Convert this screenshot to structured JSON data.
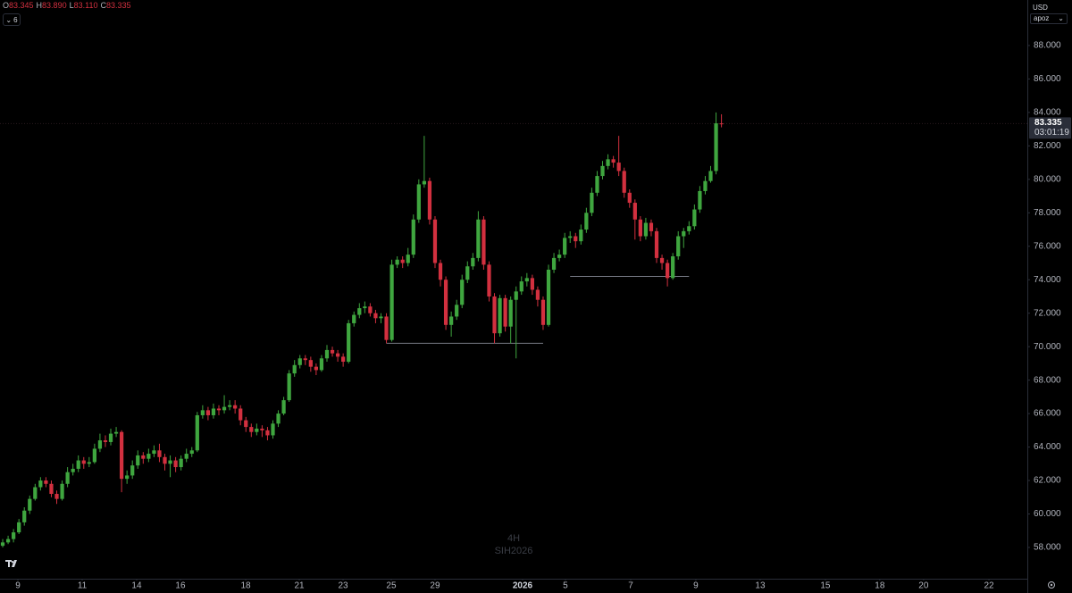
{
  "chart_data": {
    "type": "candlestick",
    "header": [
      {
        "key": "O",
        "value": 83.345,
        "label": "83.345"
      },
      {
        "key": "H",
        "value": 83.89,
        "label": "83.890"
      },
      {
        "key": "L",
        "value": 83.11,
        "label": "83.110"
      },
      {
        "key": "C",
        "value": 83.335,
        "label": "83.335"
      }
    ],
    "indicator_count": "6",
    "currency": "USD",
    "scale_menu": "apoz",
    "interval": "4H",
    "symbol": "SIH2026",
    "up_color": "#3fa63f",
    "down_color": "#d2303f",
    "grid": false,
    "open": [
      58.1,
      58.3,
      58.5,
      58.9,
      59.5,
      60.2,
      60.9,
      61.6,
      62.0,
      61.8,
      61.2,
      60.9,
      61.8,
      62.5,
      62.7,
      63.2,
      63.0,
      63.1,
      63.9,
      64.4,
      64.3,
      64.8,
      64.9,
      62.1,
      62.3,
      62.9,
      63.5,
      63.3,
      63.6,
      63.8,
      63.4,
      63.0,
      63.2,
      62.8,
      63.3,
      63.6,
      63.8,
      65.9,
      66.2,
      65.9,
      66.3,
      66.2,
      66.4,
      66.5,
      66.3,
      65.6,
      65.2,
      64.9,
      65.1,
      65.0,
      64.7,
      65.4,
      66.0,
      66.8,
      68.4,
      68.9,
      69.3,
      69.2,
      68.8,
      68.6,
      69.3,
      69.8,
      69.6,
      69.4,
      69.1,
      71.4,
      71.9,
      72.3,
      72.4,
      72.0,
      71.7,
      71.8,
      70.4,
      74.9,
      75.2,
      75.0,
      75.5,
      77.6,
      79.7,
      79.9,
      77.6,
      75.0,
      74.0,
      71.3,
      71.8,
      72.5,
      74.0,
      74.8,
      75.3,
      77.6,
      74.9,
      73.0,
      70.8,
      72.9,
      71.2,
      72.8,
      73.3,
      73.9,
      74.1,
      73.4,
      72.8,
      71.3,
      74.6,
      75.3,
      75.5,
      76.5,
      76.6,
      76.3,
      77.0,
      78.0,
      79.2,
      80.2,
      80.8,
      81.2,
      81.0,
      80.5,
      79.2,
      78.6,
      77.6,
      76.6,
      77.4,
      76.9,
      75.3,
      75.0,
      74.1,
      75.4,
      76.6,
      76.9,
      77.2,
      78.2,
      79.3,
      79.9,
      80.5,
      83.345
    ],
    "high": [
      58.5,
      58.7,
      59.1,
      59.7,
      60.4,
      61.1,
      61.8,
      62.2,
      62.2,
      62.0,
      61.4,
      62.0,
      62.8,
      63.0,
      63.5,
      63.4,
      63.4,
      64.2,
      64.8,
      64.7,
      65.1,
      65.2,
      65.0,
      62.6,
      63.2,
      63.8,
      63.7,
      63.9,
      64.1,
      64.2,
      63.6,
      63.5,
      63.4,
      63.5,
      63.9,
      64.0,
      66.1,
      66.5,
      66.4,
      66.6,
      66.5,
      67.1,
      66.8,
      66.8,
      66.5,
      65.8,
      65.4,
      65.4,
      65.3,
      65.2,
      65.6,
      66.2,
      67.0,
      68.6,
      69.2,
      69.5,
      69.5,
      69.4,
      69.0,
      69.5,
      70.1,
      70.0,
      69.8,
      69.6,
      71.6,
      72.1,
      72.6,
      72.7,
      72.6,
      72.2,
      72.0,
      72.0,
      75.2,
      75.4,
      75.4,
      75.9,
      77.9,
      80.0,
      82.6,
      80.1,
      77.8,
      75.2,
      74.2,
      72.1,
      72.8,
      74.3,
      75.1,
      75.6,
      78.1,
      77.8,
      75.1,
      73.2,
      73.1,
      73.1,
      73.0,
      73.6,
      74.2,
      74.4,
      74.3,
      73.6,
      73.0,
      74.9,
      75.6,
      75.8,
      76.8,
      76.9,
      76.8,
      77.3,
      78.3,
      79.5,
      80.5,
      81.1,
      81.5,
      81.4,
      82.6,
      80.7,
      79.4,
      78.8,
      77.8,
      77.7,
      77.6,
      77.1,
      75.5,
      75.2,
      75.6,
      76.9,
      77.1,
      77.5,
      78.5,
      79.6,
      80.2,
      80.8,
      84.0,
      83.89
    ],
    "low": [
      58.0,
      58.2,
      58.3,
      58.8,
      59.3,
      60.0,
      60.8,
      61.4,
      61.6,
      61.0,
      60.6,
      60.8,
      61.6,
      62.3,
      62.5,
      62.7,
      62.8,
      63.0,
      63.7,
      64.0,
      64.1,
      64.6,
      61.3,
      61.8,
      62.1,
      62.7,
      63.0,
      63.1,
      63.4,
      63.1,
      62.6,
      62.2,
      62.5,
      62.6,
      63.1,
      63.4,
      63.7,
      65.7,
      65.6,
      65.7,
      65.9,
      66.0,
      66.2,
      66.0,
      65.3,
      64.9,
      64.6,
      64.7,
      64.6,
      64.4,
      64.5,
      65.2,
      65.9,
      66.7,
      68.2,
      68.7,
      68.9,
      68.5,
      68.3,
      68.5,
      69.1,
      69.4,
      69.1,
      68.8,
      69.0,
      71.2,
      71.7,
      72.0,
      71.8,
      71.4,
      71.4,
      70.2,
      70.3,
      74.7,
      74.7,
      74.8,
      75.3,
      77.4,
      79.5,
      77.3,
      74.7,
      73.6,
      71.0,
      70.6,
      71.6,
      72.3,
      73.8,
      74.6,
      75.1,
      74.6,
      72.7,
      70.2,
      70.6,
      70.9,
      70.2,
      69.3,
      73.1,
      73.6,
      73.1,
      72.4,
      71.0,
      71.2,
      74.4,
      75.1,
      75.3,
      76.2,
      75.9,
      76.1,
      76.8,
      77.8,
      79.0,
      80.0,
      80.6,
      80.7,
      80.2,
      78.9,
      78.3,
      76.4,
      76.3,
      76.4,
      76.6,
      75.0,
      74.6,
      73.6,
      74.0,
      75.2,
      75.9,
      76.7,
      77.0,
      78.0,
      79.1,
      79.8,
      80.3,
      83.11
    ],
    "close": [
      58.3,
      58.5,
      58.9,
      59.5,
      60.2,
      60.9,
      61.6,
      62.0,
      61.8,
      61.2,
      60.9,
      61.8,
      62.5,
      62.7,
      63.2,
      63.0,
      63.1,
      63.9,
      64.4,
      64.3,
      64.8,
      64.9,
      62.1,
      62.3,
      62.9,
      63.5,
      63.3,
      63.6,
      63.8,
      63.4,
      63.0,
      63.2,
      62.8,
      63.3,
      63.6,
      63.8,
      65.9,
      66.2,
      65.9,
      66.3,
      66.2,
      66.4,
      66.5,
      66.3,
      65.6,
      65.2,
      64.9,
      65.1,
      65.0,
      64.7,
      65.4,
      66.0,
      66.8,
      68.4,
      68.9,
      69.3,
      69.2,
      68.8,
      68.6,
      69.3,
      69.8,
      69.6,
      69.4,
      69.1,
      71.4,
      71.9,
      72.3,
      72.4,
      72.0,
      71.7,
      71.8,
      70.4,
      74.9,
      75.2,
      75.0,
      75.5,
      77.6,
      79.7,
      79.9,
      77.6,
      75.0,
      74.0,
      71.3,
      71.8,
      72.5,
      74.0,
      74.8,
      75.3,
      77.6,
      74.9,
      73.0,
      70.8,
      72.9,
      71.2,
      72.8,
      73.3,
      73.9,
      74.1,
      73.4,
      72.8,
      71.3,
      74.6,
      75.3,
      75.5,
      76.5,
      76.6,
      76.3,
      77.0,
      78.0,
      79.2,
      80.2,
      80.8,
      81.2,
      81.0,
      80.5,
      79.2,
      78.6,
      77.6,
      76.6,
      77.4,
      76.9,
      75.3,
      75.0,
      74.1,
      75.4,
      76.6,
      76.9,
      77.2,
      78.2,
      79.3,
      79.9,
      80.5,
      83.35,
      83.335
    ],
    "levels": [
      {
        "value": 70.2,
        "x": [
          71,
          100
        ]
      },
      {
        "value": 74.2,
        "x": [
          105,
          127
        ]
      }
    ],
    "last_price": {
      "value": 83.335,
      "label": "83.335"
    },
    "countdown": "03:01:19",
    "xlim": [
      -0.5,
      189.6
    ],
    "ylim": [
      56.13,
      90.72
    ],
    "yticks": [
      {
        "value": 58,
        "label": "58.000"
      },
      {
        "value": 60,
        "label": "60.000"
      },
      {
        "value": 62,
        "label": "62.000"
      },
      {
        "value": 64,
        "label": "64.000"
      },
      {
        "value": 66,
        "label": "66.000"
      },
      {
        "value": 68,
        "label": "68.000"
      },
      {
        "value": 70,
        "label": "70.000"
      },
      {
        "value": 72,
        "label": "72.000"
      },
      {
        "value": 74,
        "label": "74.000"
      },
      {
        "value": 76,
        "label": "76.000"
      },
      {
        "value": 78,
        "label": "78.000"
      },
      {
        "value": 80,
        "label": "80.000"
      },
      {
        "value": 82,
        "label": "82.000"
      },
      {
        "value": 84,
        "label": "84.000"
      },
      {
        "value": 86,
        "label": "86.000"
      },
      {
        "value": 88,
        "label": "88.000"
      }
    ],
    "xticks": [
      {
        "value": 2.81,
        "label": "9"
      },
      {
        "value": 14.71,
        "label": "11"
      },
      {
        "value": 24.79,
        "label": "14"
      },
      {
        "value": 32.89,
        "label": "16"
      },
      {
        "value": 44.96,
        "label": "18"
      },
      {
        "value": 54.88,
        "label": "21"
      },
      {
        "value": 62.98,
        "label": "23"
      },
      {
        "value": 71.9,
        "label": "25"
      },
      {
        "value": 80.0,
        "label": "29"
      },
      {
        "value": 96.2,
        "label": "2026"
      },
      {
        "value": 104.13,
        "label": "5"
      },
      {
        "value": 116.2,
        "label": "7"
      },
      {
        "value": 128.26,
        "label": "9"
      },
      {
        "value": 140.17,
        "label": "13"
      },
      {
        "value": 152.23,
        "label": "15"
      },
      {
        "value": 162.3,
        "label": "18"
      },
      {
        "value": 170.4,
        "label": "20"
      },
      {
        "value": 182.5,
        "label": "22"
      }
    ]
  }
}
